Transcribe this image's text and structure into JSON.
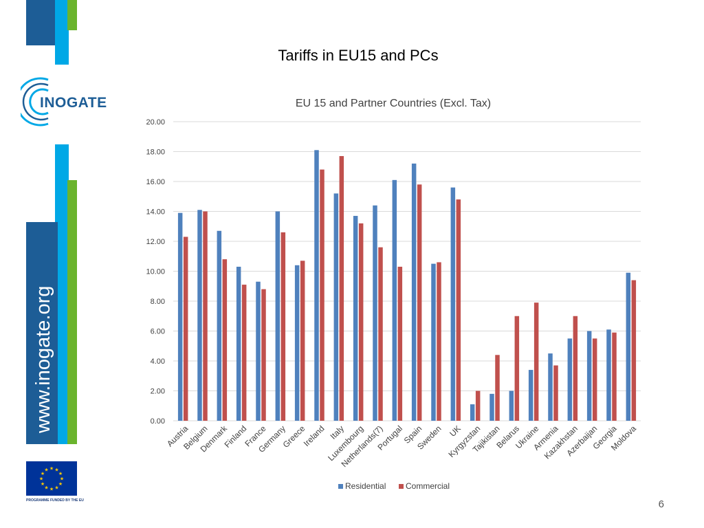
{
  "slide": {
    "title": "Tariffs in EU15 and PCs",
    "page_number": "6",
    "logo_text": "INOGATE",
    "website_text": "www.inogate.org",
    "funding_caption": "PROGRAMME FUNDED BY THE EU"
  },
  "colors": {
    "residential": "#4f81bd",
    "commercial": "#c0504d",
    "brand_dark_blue": "#1d5d96",
    "brand_light_blue": "#00a8e6",
    "brand_green": "#6ab42d",
    "eu_blue": "#003399",
    "eu_star": "#ffcc00"
  },
  "chart_data": {
    "type": "bar",
    "title": "EU 15 and Partner Countries (Excl. Tax)",
    "xlabel": "",
    "ylabel": "",
    "ylim": [
      0,
      20
    ],
    "y_ticks": [
      "0.00",
      "2.00",
      "4.00",
      "6.00",
      "8.00",
      "10.00",
      "12.00",
      "14.00",
      "16.00",
      "18.00",
      "20.00"
    ],
    "grid": true,
    "legend_position": "bottom",
    "categories": [
      "Austria",
      "Belgium",
      "Denmark",
      "Finland",
      "France",
      "Germany",
      "Greece",
      "Ireland",
      "Italy",
      "Luxembourg",
      "Netherlands(7)",
      "Portugal",
      "Spain",
      "Sweden",
      "UK",
      "Kyrgyzstan",
      "Tajikistan",
      "Belarus",
      "Ukraine",
      "Armenia",
      "Kazakhstan",
      "Azerbaijan",
      "Georgia",
      "Moldova"
    ],
    "series": [
      {
        "name": "Residential",
        "values": [
          13.9,
          14.1,
          12.7,
          10.3,
          9.3,
          14.0,
          10.4,
          18.1,
          15.2,
          13.7,
          14.4,
          16.1,
          17.2,
          10.5,
          15.6,
          1.1,
          1.8,
          2.0,
          3.4,
          4.5,
          5.5,
          6.0,
          6.1,
          9.9
        ]
      },
      {
        "name": "Commercial",
        "values": [
          12.3,
          14.0,
          10.8,
          9.1,
          8.8,
          12.6,
          10.7,
          16.8,
          17.7,
          13.2,
          11.6,
          10.3,
          15.8,
          10.6,
          14.8,
          2.0,
          4.4,
          7.0,
          7.9,
          3.7,
          7.0,
          5.5,
          5.9,
          9.4
        ]
      }
    ]
  }
}
